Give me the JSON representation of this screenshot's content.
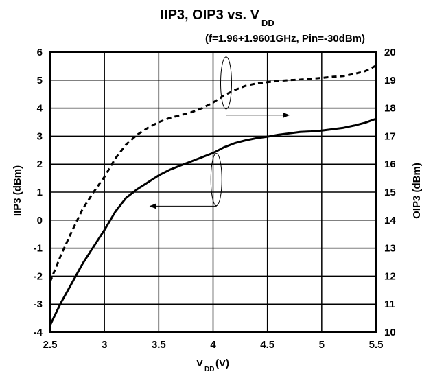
{
  "chart_data": {
    "type": "line",
    "title": "IIP3, OIP3 vs. V",
    "title_subscript": "DD",
    "subtitle": "(f=1.96+1.9601GHz, Pin=-30dBm)",
    "xlabel": "V",
    "xlabel_subscript": "DD",
    "xlabel_unit": " (V)",
    "ylabel_left": "IIP3 (dBm)",
    "ylabel_right": "OIP3 (dBm)",
    "xlim": [
      2.5,
      5.5
    ],
    "ylim_left": [
      -4,
      6
    ],
    "ylim_right": [
      10,
      20
    ],
    "x_ticks": [
      "2.5",
      "3",
      "3.5",
      "4",
      "4.5",
      "5",
      "5.5"
    ],
    "y_ticks_left": [
      "-4",
      "-3",
      "-2",
      "-1",
      "0",
      "1",
      "2",
      "3",
      "4",
      "5",
      "6"
    ],
    "y_ticks_right": [
      "10",
      "11",
      "12",
      "13",
      "14",
      "15",
      "16",
      "17",
      "18",
      "19",
      "20"
    ],
    "grid": true,
    "series": [
      {
        "axis": "left",
        "style": "solid",
        "color": "#000000",
        "x": [
          2.5,
          2.6,
          2.7,
          2.8,
          2.9,
          3.0,
          3.1,
          3.2,
          3.3,
          3.4,
          3.5,
          3.6,
          3.7,
          3.8,
          3.9,
          4.0,
          4.1,
          4.2,
          4.3,
          4.4,
          4.5,
          4.6,
          4.7,
          4.8,
          4.9,
          5.0,
          5.1,
          5.2,
          5.3,
          5.4,
          5.5
        ],
        "values": [
          -3.75,
          -2.95,
          -2.25,
          -1.55,
          -0.95,
          -0.35,
          0.3,
          0.8,
          1.1,
          1.35,
          1.6,
          1.8,
          1.95,
          2.1,
          2.25,
          2.4,
          2.6,
          2.75,
          2.85,
          2.93,
          2.98,
          3.05,
          3.1,
          3.15,
          3.17,
          3.2,
          3.25,
          3.3,
          3.38,
          3.48,
          3.62
        ]
      },
      {
        "axis": "right",
        "style": "dashed",
        "color": "#000000",
        "x": [
          2.5,
          2.6,
          2.7,
          2.8,
          2.9,
          3.0,
          3.1,
          3.2,
          3.3,
          3.4,
          3.5,
          3.6,
          3.7,
          3.8,
          3.9,
          4.0,
          4.1,
          4.2,
          4.3,
          4.4,
          4.5,
          4.6,
          4.7,
          4.8,
          4.9,
          5.0,
          5.1,
          5.2,
          5.3,
          5.4,
          5.5
        ],
        "values": [
          11.8,
          12.75,
          13.6,
          14.4,
          15.0,
          15.55,
          16.2,
          16.7,
          17.05,
          17.3,
          17.5,
          17.65,
          17.75,
          17.85,
          18.0,
          18.2,
          18.45,
          18.65,
          18.8,
          18.88,
          18.93,
          18.97,
          19.0,
          19.02,
          19.05,
          19.08,
          19.12,
          19.15,
          19.22,
          19.32,
          19.52
        ]
      }
    ],
    "annotations": [
      {
        "type": "ellipse-arrow",
        "target_axis": "right",
        "ellipse": {
          "x": 4.12,
          "y_right": 18.9
        },
        "arrow_to": {
          "x": 4.7,
          "y_right": 17.75
        }
      },
      {
        "type": "ellipse-arrow",
        "target_axis": "left",
        "ellipse": {
          "x": 4.03,
          "y_left": 1.45
        },
        "arrow_to": {
          "x": 3.42,
          "y_left": 0.5
        }
      }
    ]
  }
}
